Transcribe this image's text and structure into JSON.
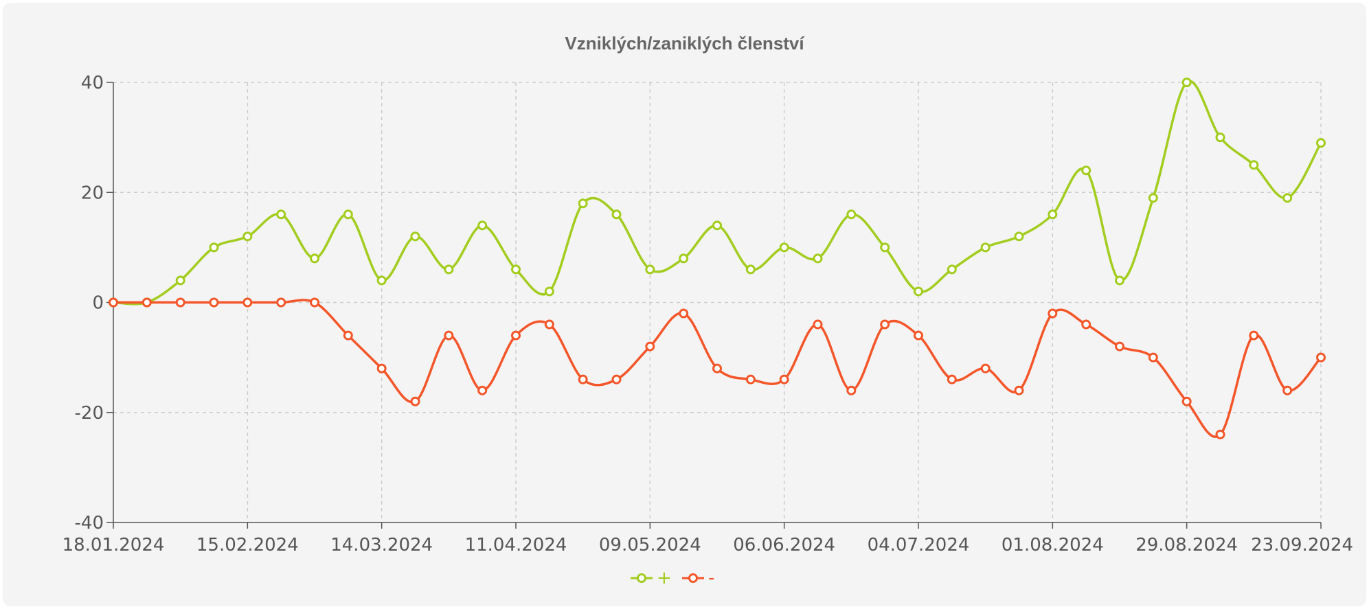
{
  "chart_data": {
    "type": "line",
    "title": "Vzniklých/zaniklých členství",
    "xlabel": "",
    "ylabel": "",
    "ylim": [
      -40,
      40
    ],
    "yticks": [
      40,
      20,
      0,
      -20,
      -40
    ],
    "x": [
      "18.01.2024",
      "25.01.2024",
      "01.02.2024",
      "08.02.2024",
      "15.02.2024",
      "22.02.2024",
      "29.02.2024",
      "07.03.2024",
      "14.03.2024",
      "21.03.2024",
      "28.03.2024",
      "04.04.2024",
      "11.04.2024",
      "18.04.2024",
      "25.04.2024",
      "02.05.2024",
      "09.05.2024",
      "16.05.2024",
      "23.05.2024",
      "30.05.2024",
      "06.06.2024",
      "13.06.2024",
      "20.06.2024",
      "27.06.2024",
      "04.07.2024",
      "11.07.2024",
      "18.07.2024",
      "25.07.2024",
      "01.08.2024",
      "08.08.2024",
      "15.08.2024",
      "22.08.2024",
      "29.08.2024",
      "05.09.2024",
      "12.09.2024",
      "19.09.2024",
      "23.09.2024"
    ],
    "xtick_labels": [
      "18.01.2024",
      "15.02.2024",
      "14.03.2024",
      "11.04.2024",
      "09.05.2024",
      "06.06.2024",
      "04.07.2024",
      "01.08.2024",
      "29.08.2024",
      "23.09.2024"
    ],
    "grid": true,
    "legend_position": "bottom-center",
    "series": [
      {
        "name": "+",
        "color": "#a2cd1e",
        "values": [
          0,
          0,
          4,
          10,
          12,
          16,
          8,
          16,
          4,
          12,
          6,
          14,
          6,
          2,
          18,
          16,
          6,
          8,
          14,
          6,
          10,
          8,
          16,
          10,
          2,
          6,
          10,
          12,
          16,
          24,
          4,
          19,
          40,
          30,
          25,
          19,
          29
        ]
      },
      {
        "name": "-",
        "color": "#f4562a",
        "values": [
          0,
          0,
          0,
          0,
          0,
          0,
          0,
          -6,
          -12,
          -18,
          -6,
          -16,
          -6,
          -4,
          -14,
          -14,
          -8,
          -2,
          -12,
          -14,
          -14,
          -4,
          -16,
          -4,
          -6,
          -14,
          -12,
          -16,
          -2,
          -4,
          -8,
          -10,
          -18,
          -24,
          -6,
          -16,
          -10
        ]
      }
    ]
  }
}
